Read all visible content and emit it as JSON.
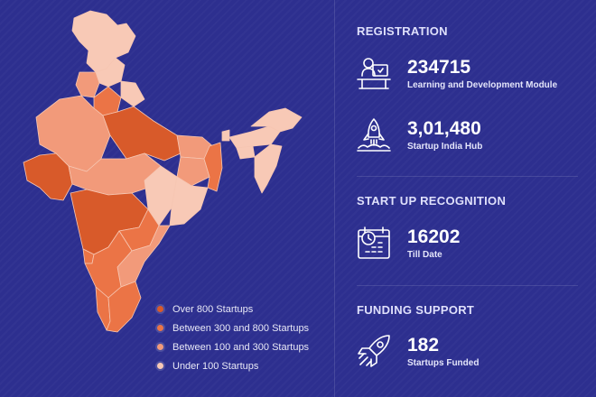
{
  "colors": {
    "background": "#2d2f8f",
    "over_800": "#d85a2a",
    "between_300_800": "#eb7446",
    "between_100_300": "#f29a7a",
    "under_100": "#f8c9b6"
  },
  "legend": {
    "items": [
      {
        "label": "Over 800 Startups",
        "color": "#d85a2a"
      },
      {
        "label": "Between 300 and 800 Startups",
        "color": "#eb7446"
      },
      {
        "label": "Between 100 and 300 Startups",
        "color": "#f29a7a"
      },
      {
        "label": "Under 100 Startups",
        "color": "#f8c9b6"
      }
    ]
  },
  "registration": {
    "title": "REGISTRATION",
    "stats": [
      {
        "value": "234715",
        "label": "Learning and Development Module",
        "icon": "learner-computer-icon"
      },
      {
        "value": "3,01,480",
        "label": "Startup India Hub",
        "icon": "rocket-launch-icon"
      }
    ]
  },
  "recognition": {
    "title": "START UP RECOGNITION",
    "value": "16202",
    "label": "Till Date",
    "icon": "calendar-clock-icon"
  },
  "funding": {
    "title": "FUNDING SUPPORT",
    "value": "182",
    "label": "Startups Funded",
    "icon": "rocket-icon"
  }
}
